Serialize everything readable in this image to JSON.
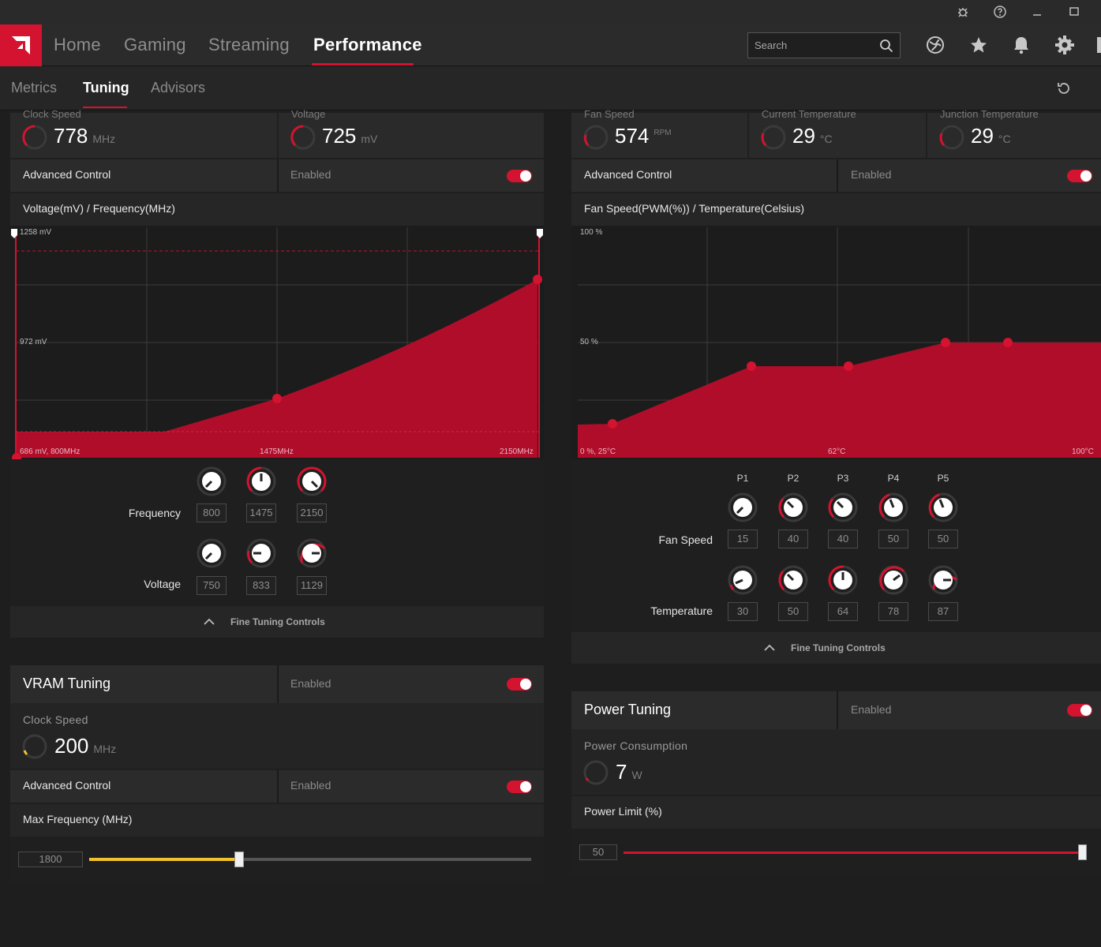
{
  "nav": {
    "tabs": [
      "Home",
      "Gaming",
      "Streaming",
      "Performance"
    ],
    "active": "Performance",
    "search_placeholder": "Search",
    "accent": "#d3132f"
  },
  "subnav": {
    "tabs": [
      "Metrics",
      "Tuning",
      "Advisors"
    ],
    "active": "Tuning"
  },
  "gpu": {
    "clock": {
      "label": "Clock Speed",
      "value": "778",
      "unit": "MHz"
    },
    "voltage": {
      "label": "Voltage",
      "value": "725",
      "unit": "mV"
    },
    "advanced_label": "Advanced Control",
    "advanced_state": "Enabled",
    "chart_title": "Voltage(mV) / Frequency(MHz)",
    "axis": {
      "y_top": "1258 mV",
      "y_mid": "972 mV",
      "x_origin": "686 mV, 800MHz",
      "x_mid": "1475MHz",
      "x_end": "2150MHz"
    },
    "frequency_label": "Frequency",
    "voltage_label": "Voltage",
    "frequency_values": [
      "800",
      "1475",
      "2150"
    ],
    "voltage_values": [
      "750",
      "833",
      "1129"
    ],
    "fine_tuning": "Fine Tuning Controls"
  },
  "fan": {
    "fan_speed": {
      "label": "Fan Speed",
      "value": "574",
      "unit": "RPM"
    },
    "current_temp": {
      "label": "Current Temperature",
      "value": "29",
      "unit": "°C"
    },
    "junction_temp": {
      "label": "Junction Temperature",
      "value": "29",
      "unit": "°C"
    },
    "advanced_label": "Advanced Control",
    "advanced_state": "Enabled",
    "chart_title": "Fan Speed(PWM(%)) / Temperature(Celsius)",
    "axis": {
      "y_top": "100 %",
      "y_mid": "50 %",
      "x_origin": "0 %, 25°C",
      "x_mid": "62°C",
      "x_end": "100°C"
    },
    "points": [
      "P1",
      "P2",
      "P3",
      "P4",
      "P5"
    ],
    "fan_speed_label": "Fan Speed",
    "temperature_label": "Temperature",
    "fan_speed_values": [
      "15",
      "40",
      "40",
      "50",
      "50"
    ],
    "temperature_values": [
      "30",
      "50",
      "64",
      "78",
      "87"
    ],
    "fine_tuning": "Fine Tuning Controls"
  },
  "vram": {
    "title": "VRAM Tuning",
    "state": "Enabled",
    "clock_label": "Clock Speed",
    "clock_value": "200",
    "clock_unit": "MHz",
    "advanced_label": "Advanced Control",
    "advanced_state": "Enabled",
    "max_freq_label": "Max Frequency (MHz)",
    "max_freq_value": "1800",
    "max_freq_fraction": 0.34,
    "slider_color": "#f2c12e"
  },
  "power": {
    "title": "Power Tuning",
    "state": "Enabled",
    "consumption_label": "Power Consumption",
    "consumption_value": "7",
    "consumption_unit": "W",
    "limit_label": "Power Limit (%)",
    "limit_value": "50",
    "limit_fraction": 1.0
  }
}
